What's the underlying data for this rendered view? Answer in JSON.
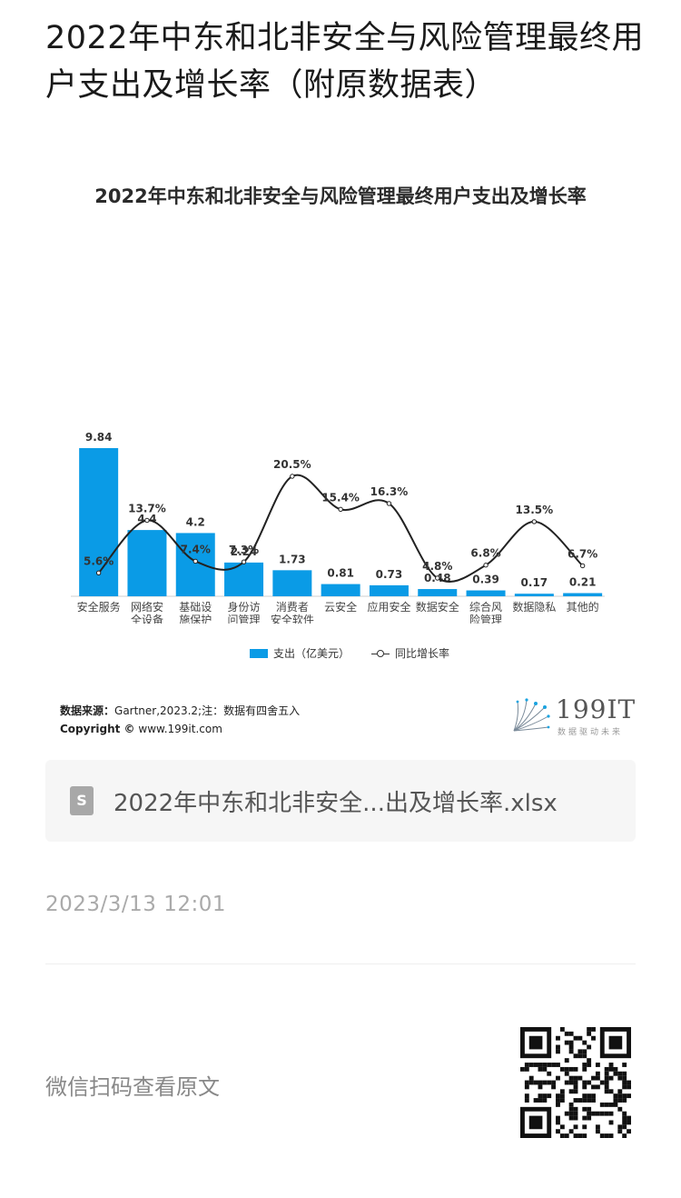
{
  "article": {
    "title": "2022年中东和北非安全与风险管理最终用户支出及增长率（附原数据表）"
  },
  "chart_data": {
    "type": "bar",
    "title": "2022年中东和北非安全与风险管理最终用户支出及增长率",
    "categories": [
      "安全服务",
      "网络安全设备",
      "基础设施保护",
      "身份访问管理",
      "消费者安全软件",
      "云安全",
      "应用安全",
      "数据安全",
      "综合风险管理",
      "数据隐私",
      "其他的"
    ],
    "category_lines": [
      [
        "安全服务"
      ],
      [
        "网络安",
        "全设备"
      ],
      [
        "基础设",
        "施保护"
      ],
      [
        "身份访",
        "问管理"
      ],
      [
        "消费者",
        "安全软件"
      ],
      [
        "云安全"
      ],
      [
        "应用安全"
      ],
      [
        "数据安全"
      ],
      [
        "综合风",
        "险管理"
      ],
      [
        "数据隐私"
      ],
      [
        "其他的"
      ]
    ],
    "series": [
      {
        "name": "支出（亿美元）",
        "type": "bar",
        "values": [
          9.84,
          4.4,
          4.2,
          2.24,
          1.73,
          0.81,
          0.73,
          0.48,
          0.39,
          0.17,
          0.21
        ],
        "labels": [
          "9.84",
          "4.4",
          "4.2",
          "2.24",
          "1.73",
          "0.81",
          "0.73",
          "0.48",
          "0.39",
          "0.17",
          "0.21"
        ],
        "color": "#0a9be6"
      },
      {
        "name": "同比增长率",
        "type": "line",
        "values": [
          5.6,
          13.7,
          7.4,
          7.3,
          20.5,
          15.4,
          16.3,
          4.8,
          6.8,
          13.5,
          6.7
        ],
        "labels": [
          "5.6%",
          "13.7%",
          "7.4%",
          "7.3%",
          "20.5%",
          "15.4%",
          "16.3%",
          "4.8%",
          "6.8%",
          "13.5%",
          "6.7%"
        ],
        "color": "#222222"
      }
    ],
    "legend": {
      "bar_label": "支出（亿美元）",
      "line_label": "同比增长率",
      "position": "bottom"
    },
    "source": {
      "label": "数据来源：",
      "text": "Gartner,2023.2;注：数据有四舍五入",
      "copyright_label": "Copyright ©",
      "copyright_text": "www.199it.com"
    },
    "brand": {
      "name": "199IT",
      "tagline": "数据驱动未来"
    }
  },
  "attachment": {
    "file_name": "2022年中东和北非安全...出及增长率.xlsx",
    "icon": "spreadsheet-file-icon"
  },
  "meta": {
    "timestamp": "2023/3/13 12:01"
  },
  "footer": {
    "qr_caption": "微信扫码查看原文",
    "qr_icon": "qr-code-icon"
  }
}
